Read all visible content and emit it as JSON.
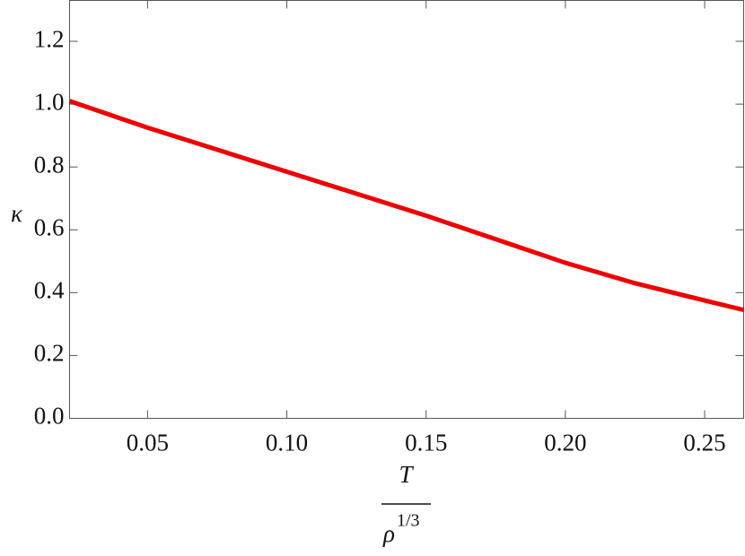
{
  "chart_data": {
    "type": "line",
    "y_label": "κ",
    "x_label": {
      "numerator": "T",
      "denominator": "ρ",
      "denominator_superscript": "1/3"
    },
    "x": [
      0.022,
      0.05,
      0.075,
      0.1,
      0.125,
      0.15,
      0.175,
      0.2,
      0.225,
      0.25,
      0.264
    ],
    "series": [
      {
        "color": "#ee0000",
        "values": [
          1.01,
          0.925,
          0.855,
          0.785,
          0.715,
          0.645,
          0.57,
          0.495,
          0.43,
          0.375,
          0.345
        ]
      }
    ],
    "xlim": [
      0.022,
      0.264
    ],
    "xticks": [
      {
        "value": 0.05,
        "label": "0.05"
      },
      {
        "value": 0.1,
        "label": "0.10"
      },
      {
        "value": 0.15,
        "label": "0.15"
      },
      {
        "value": 0.2,
        "label": "0.20"
      },
      {
        "value": 0.25,
        "label": "0.25"
      }
    ],
    "ylim": [
      0,
      1.33
    ],
    "yticks": [
      {
        "value": 0,
        "label": "0.0"
      },
      {
        "value": 0.2,
        "label": "0.2"
      },
      {
        "value": 0.4,
        "label": "0.4"
      },
      {
        "value": 0.6,
        "label": "0.6"
      },
      {
        "value": 0.8,
        "label": "0.8"
      },
      {
        "value": 1,
        "label": "1.0"
      },
      {
        "value": 1.2,
        "label": "1.2"
      }
    ],
    "grid": false
  }
}
